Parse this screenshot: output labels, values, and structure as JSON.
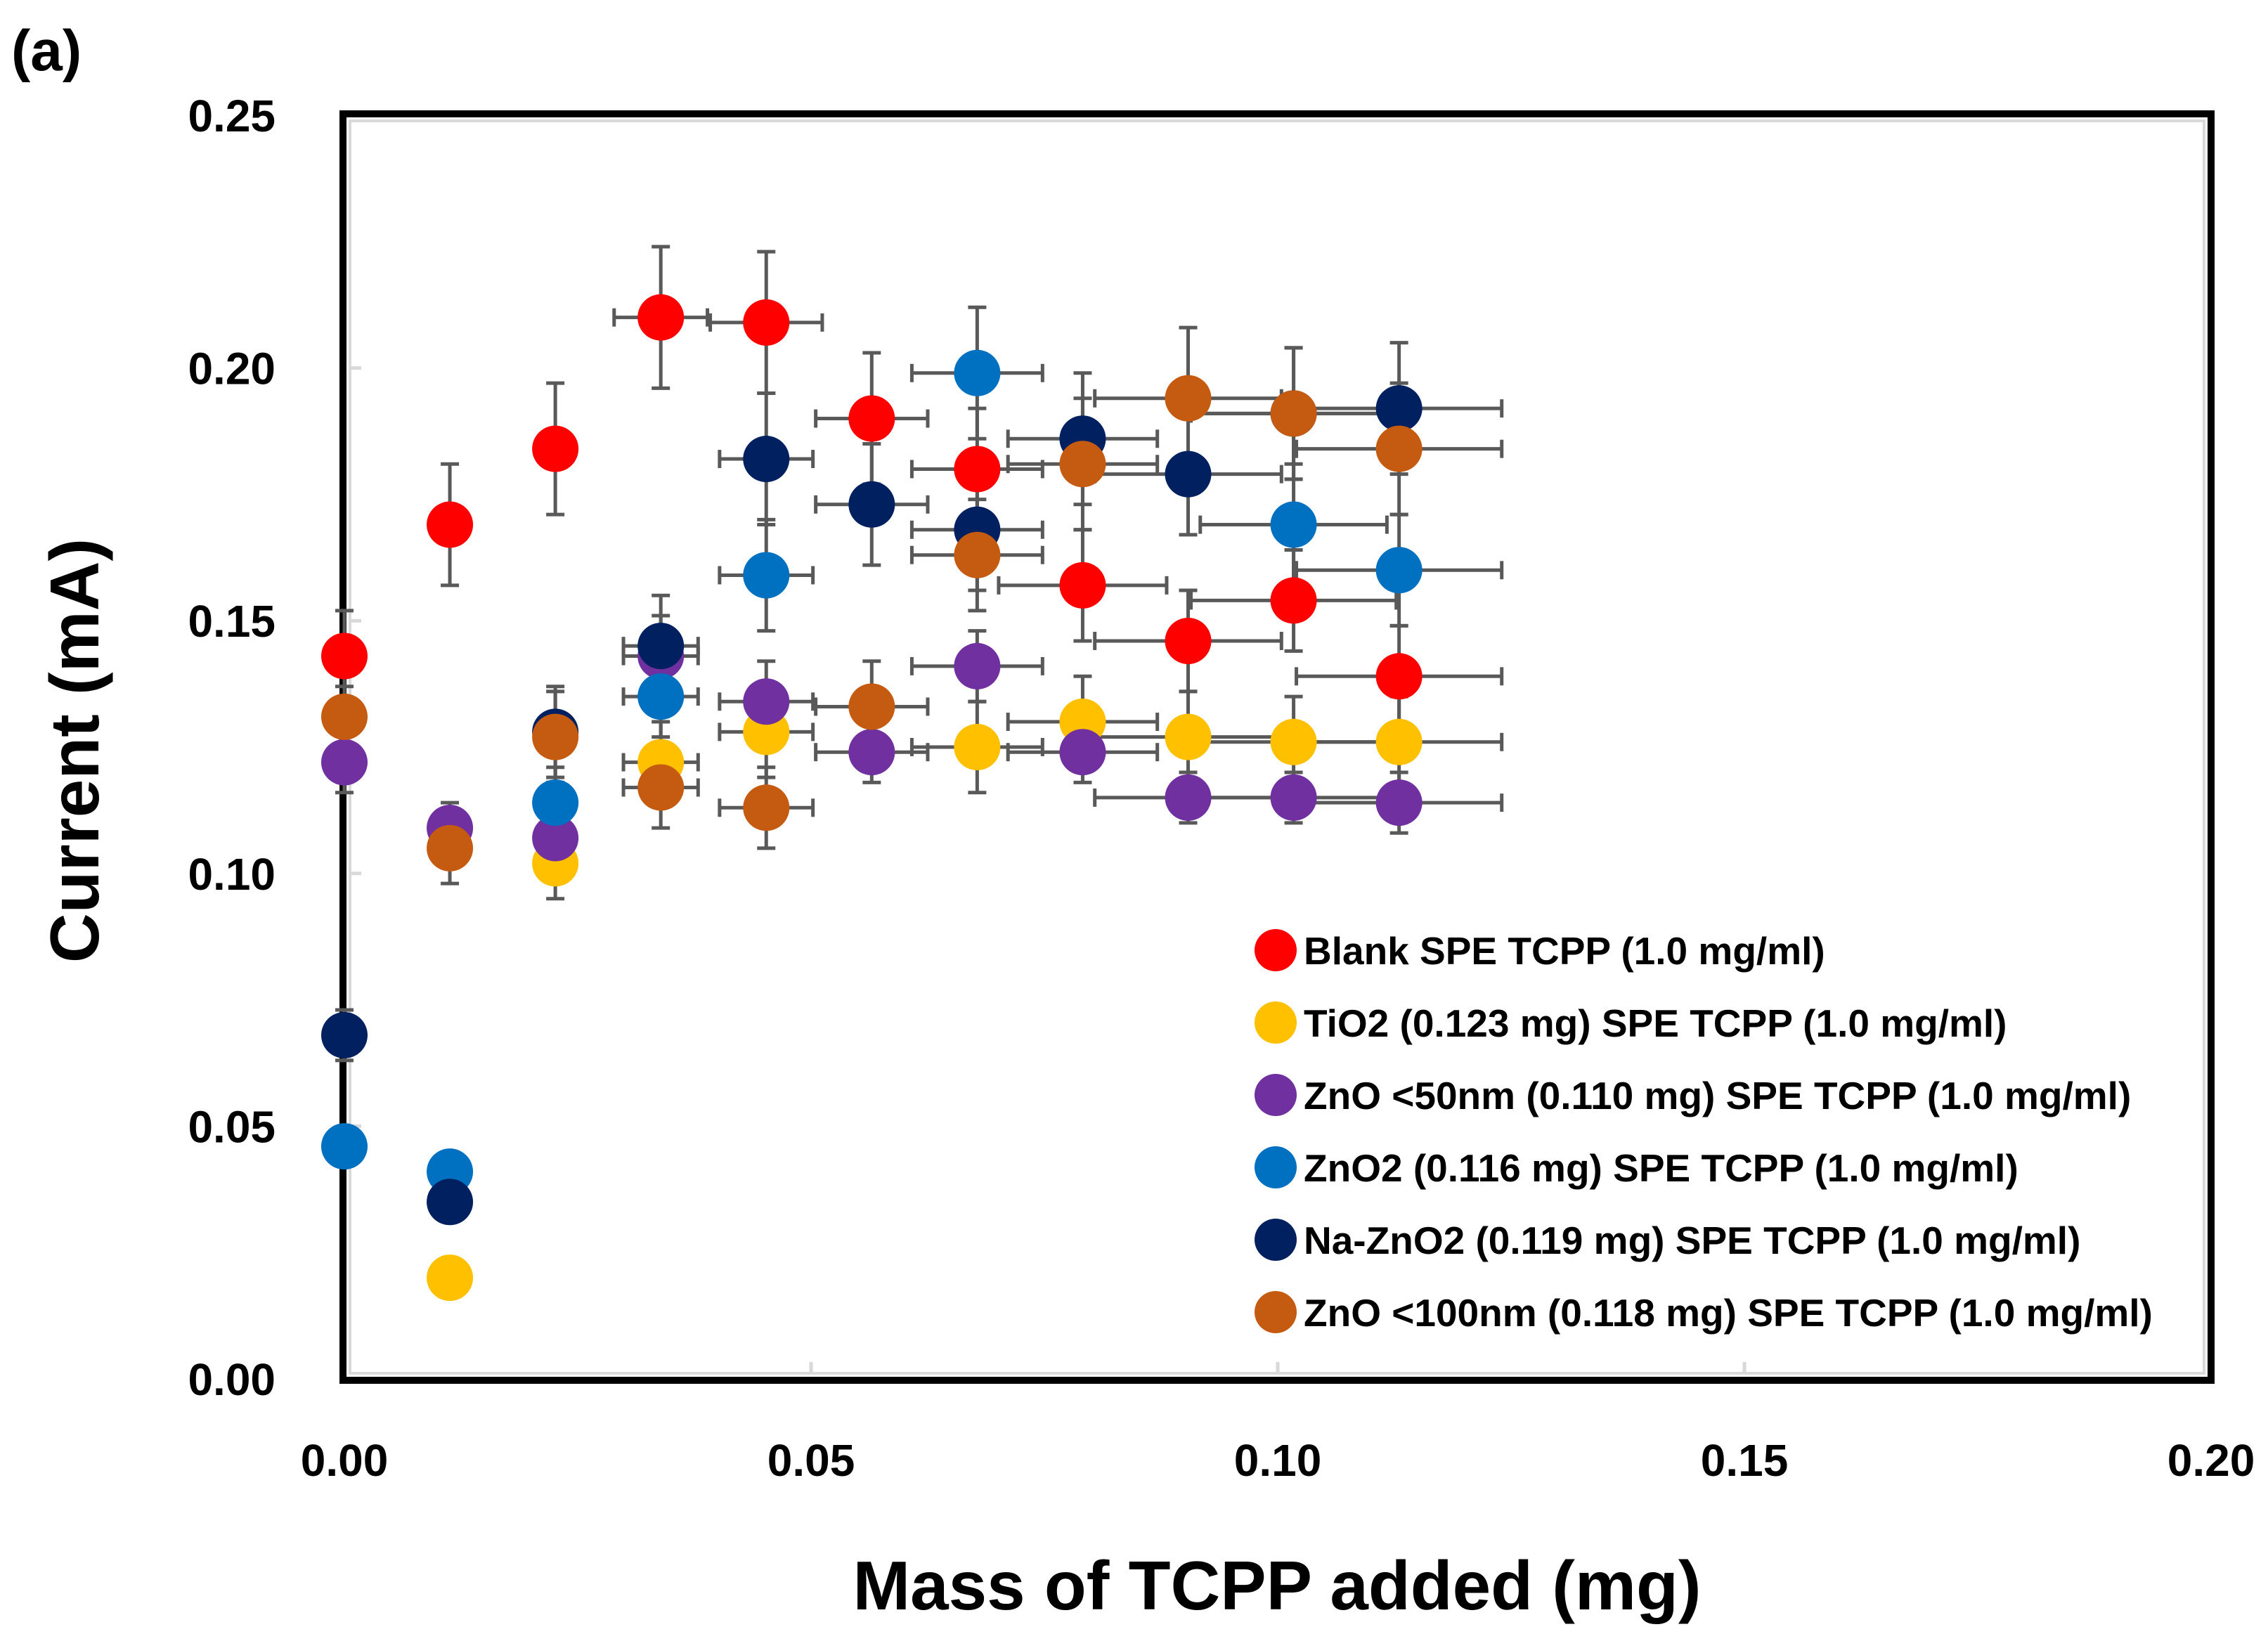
{
  "panel_label": "(a)",
  "chart_data": {
    "type": "scatter",
    "title": "",
    "xlabel": "Mass of TCPP added  (mg)",
    "ylabel": "Current  (mA)",
    "xlim": [
      0,
      0.2
    ],
    "ylim": [
      0,
      0.25
    ],
    "xticks": [
      "0.00",
      "0.05",
      "0.10",
      "0.15",
      "0.20"
    ],
    "yticks": [
      "0.00",
      "0.05",
      "0.10",
      "0.15",
      "0.20",
      "0.25"
    ],
    "grid": false,
    "legend_position": "bottom-right",
    "error_bar_color": "#595959",
    "series": [
      {
        "name": "Blank SPE TCPP (1.0 mg/ml)",
        "color": "#ff0000",
        "points": [
          {
            "x": 0.0,
            "y": 0.143,
            "xerr": 0.0,
            "yerr": 0.009
          },
          {
            "x": 0.0113,
            "y": 0.169,
            "xerr": 0.0,
            "yerr": 0.012
          },
          {
            "x": 0.0226,
            "y": 0.184,
            "xerr": 0.002,
            "yerr": 0.013
          },
          {
            "x": 0.0339,
            "y": 0.21,
            "xerr": 0.005,
            "yerr": 0.014
          },
          {
            "x": 0.0452,
            "y": 0.209,
            "xerr": 0.006,
            "yerr": 0.014
          },
          {
            "x": 0.0565,
            "y": 0.19,
            "xerr": 0.006,
            "yerr": 0.013
          },
          {
            "x": 0.0678,
            "y": 0.18,
            "xerr": 0.007,
            "yerr": 0.012
          },
          {
            "x": 0.0791,
            "y": 0.157,
            "xerr": 0.009,
            "yerr": 0.011
          },
          {
            "x": 0.0904,
            "y": 0.146,
            "xerr": 0.01,
            "yerr": 0.01
          },
          {
            "x": 0.1017,
            "y": 0.154,
            "xerr": 0.011,
            "yerr": 0.01
          },
          {
            "x": 0.113,
            "y": 0.139,
            "xerr": 0.011,
            "yerr": 0.01
          }
        ]
      },
      {
        "name": "TiO2 (0.123 mg) SPE TCPP (1.0 mg/ml)",
        "color": "#ffc000",
        "points": [
          {
            "x": 0.0113,
            "y": 0.02,
            "xerr": 0.0,
            "yerr": 0.0
          },
          {
            "x": 0.0226,
            "y": 0.102,
            "xerr": 0.0,
            "yerr": 0.007
          },
          {
            "x": 0.0339,
            "y": 0.122,
            "xerr": 0.004,
            "yerr": 0.008
          },
          {
            "x": 0.0452,
            "y": 0.128,
            "xerr": 0.005,
            "yerr": 0.009
          },
          {
            "x": 0.0678,
            "y": 0.125,
            "xerr": 0.007,
            "yerr": 0.009
          },
          {
            "x": 0.0791,
            "y": 0.13,
            "xerr": 0.008,
            "yerr": 0.009
          },
          {
            "x": 0.0904,
            "y": 0.127,
            "xerr": 0.01,
            "yerr": 0.009
          },
          {
            "x": 0.1017,
            "y": 0.126,
            "xerr": 0.011,
            "yerr": 0.009
          },
          {
            "x": 0.113,
            "y": 0.126,
            "xerr": 0.011,
            "yerr": 0.009
          }
        ]
      },
      {
        "name": "ZnO <50nm (0.110 mg) SPE TCPP (1.0 mg/ml)",
        "color": "#7030a0",
        "points": [
          {
            "x": 0.0,
            "y": 0.122,
            "xerr": 0.0,
            "yerr": 0.006
          },
          {
            "x": 0.0113,
            "y": 0.109,
            "xerr": 0.0,
            "yerr": 0.005
          },
          {
            "x": 0.0226,
            "y": 0.107,
            "xerr": 0.002,
            "yerr": 0.007
          },
          {
            "x": 0.0339,
            "y": 0.143,
            "xerr": 0.004,
            "yerr": 0.008
          },
          {
            "x": 0.0452,
            "y": 0.134,
            "xerr": 0.005,
            "yerr": 0.008
          },
          {
            "x": 0.0565,
            "y": 0.124,
            "xerr": 0.006,
            "yerr": 0.006
          },
          {
            "x": 0.0678,
            "y": 0.141,
            "xerr": 0.007,
            "yerr": 0.007
          },
          {
            "x": 0.0791,
            "y": 0.124,
            "xerr": 0.008,
            "yerr": 0.006
          },
          {
            "x": 0.0904,
            "y": 0.115,
            "xerr": 0.01,
            "yerr": 0.005
          },
          {
            "x": 0.1017,
            "y": 0.115,
            "xerr": 0.011,
            "yerr": 0.005
          },
          {
            "x": 0.113,
            "y": 0.114,
            "xerr": 0.011,
            "yerr": 0.006
          }
        ]
      },
      {
        "name": "ZnO2 (0.116 mg) SPE TCPP (1.0 mg/ml)",
        "color": "#0070c0",
        "points": [
          {
            "x": 0.0,
            "y": 0.046,
            "xerr": 0.0,
            "yerr": 0.0
          },
          {
            "x": 0.0113,
            "y": 0.041,
            "xerr": 0.0,
            "yerr": 0.0
          },
          {
            "x": 0.0226,
            "y": 0.114,
            "xerr": 0.0,
            "yerr": 0.007
          },
          {
            "x": 0.0339,
            "y": 0.135,
            "xerr": 0.004,
            "yerr": 0.008
          },
          {
            "x": 0.0452,
            "y": 0.159,
            "xerr": 0.005,
            "yerr": 0.011
          },
          {
            "x": 0.0678,
            "y": 0.199,
            "xerr": 0.007,
            "yerr": 0.013
          },
          {
            "x": 0.1017,
            "y": 0.169,
            "xerr": 0.01,
            "yerr": 0.012
          },
          {
            "x": 0.113,
            "y": 0.16,
            "xerr": 0.011,
            "yerr": 0.011
          }
        ]
      },
      {
        "name": "Na-ZnO2 (0.119 mg) SPE TCPP (1.0 mg/ml)",
        "color": "#002060",
        "points": [
          {
            "x": 0.0,
            "y": 0.068,
            "xerr": 0.0,
            "yerr": 0.005
          },
          {
            "x": 0.0113,
            "y": 0.035,
            "xerr": 0.0,
            "yerr": 0.0
          },
          {
            "x": 0.0226,
            "y": 0.128,
            "xerr": 0.002,
            "yerr": 0.009
          },
          {
            "x": 0.0339,
            "y": 0.145,
            "xerr": 0.004,
            "yerr": 0.01
          },
          {
            "x": 0.0452,
            "y": 0.182,
            "xerr": 0.005,
            "yerr": 0.013
          },
          {
            "x": 0.0565,
            "y": 0.173,
            "xerr": 0.006,
            "yerr": 0.012
          },
          {
            "x": 0.0678,
            "y": 0.168,
            "xerr": 0.007,
            "yerr": 0.012
          },
          {
            "x": 0.0791,
            "y": 0.186,
            "xerr": 0.008,
            "yerr": 0.013
          },
          {
            "x": 0.0904,
            "y": 0.179,
            "xerr": 0.01,
            "yerr": 0.012
          },
          {
            "x": 0.1017,
            "y": 0.191,
            "xerr": 0.011,
            "yerr": 0.013
          },
          {
            "x": 0.113,
            "y": 0.192,
            "xerr": 0.011,
            "yerr": 0.013
          }
        ]
      },
      {
        "name": "ZnO <100nm (0.118 mg) SPE TCPP (1.0 mg/ml)",
        "color": "#c55a11",
        "points": [
          {
            "x": 0.0,
            "y": 0.131,
            "xerr": 0.0,
            "yerr": 0.006
          },
          {
            "x": 0.0113,
            "y": 0.105,
            "xerr": 0.0,
            "yerr": 0.007
          },
          {
            "x": 0.0226,
            "y": 0.127,
            "xerr": 0.002,
            "yerr": 0.009
          },
          {
            "x": 0.0339,
            "y": 0.117,
            "xerr": 0.004,
            "yerr": 0.008
          },
          {
            "x": 0.0452,
            "y": 0.113,
            "xerr": 0.005,
            "yerr": 0.008
          },
          {
            "x": 0.0565,
            "y": 0.133,
            "xerr": 0.006,
            "yerr": 0.009
          },
          {
            "x": 0.0678,
            "y": 0.163,
            "xerr": 0.007,
            "yerr": 0.011
          },
          {
            "x": 0.0791,
            "y": 0.181,
            "xerr": 0.008,
            "yerr": 0.013
          },
          {
            "x": 0.0904,
            "y": 0.194,
            "xerr": 0.01,
            "yerr": 0.014
          },
          {
            "x": 0.1017,
            "y": 0.191,
            "xerr": 0.011,
            "yerr": 0.013
          },
          {
            "x": 0.113,
            "y": 0.184,
            "xerr": 0.011,
            "yerr": 0.013
          }
        ]
      }
    ]
  }
}
